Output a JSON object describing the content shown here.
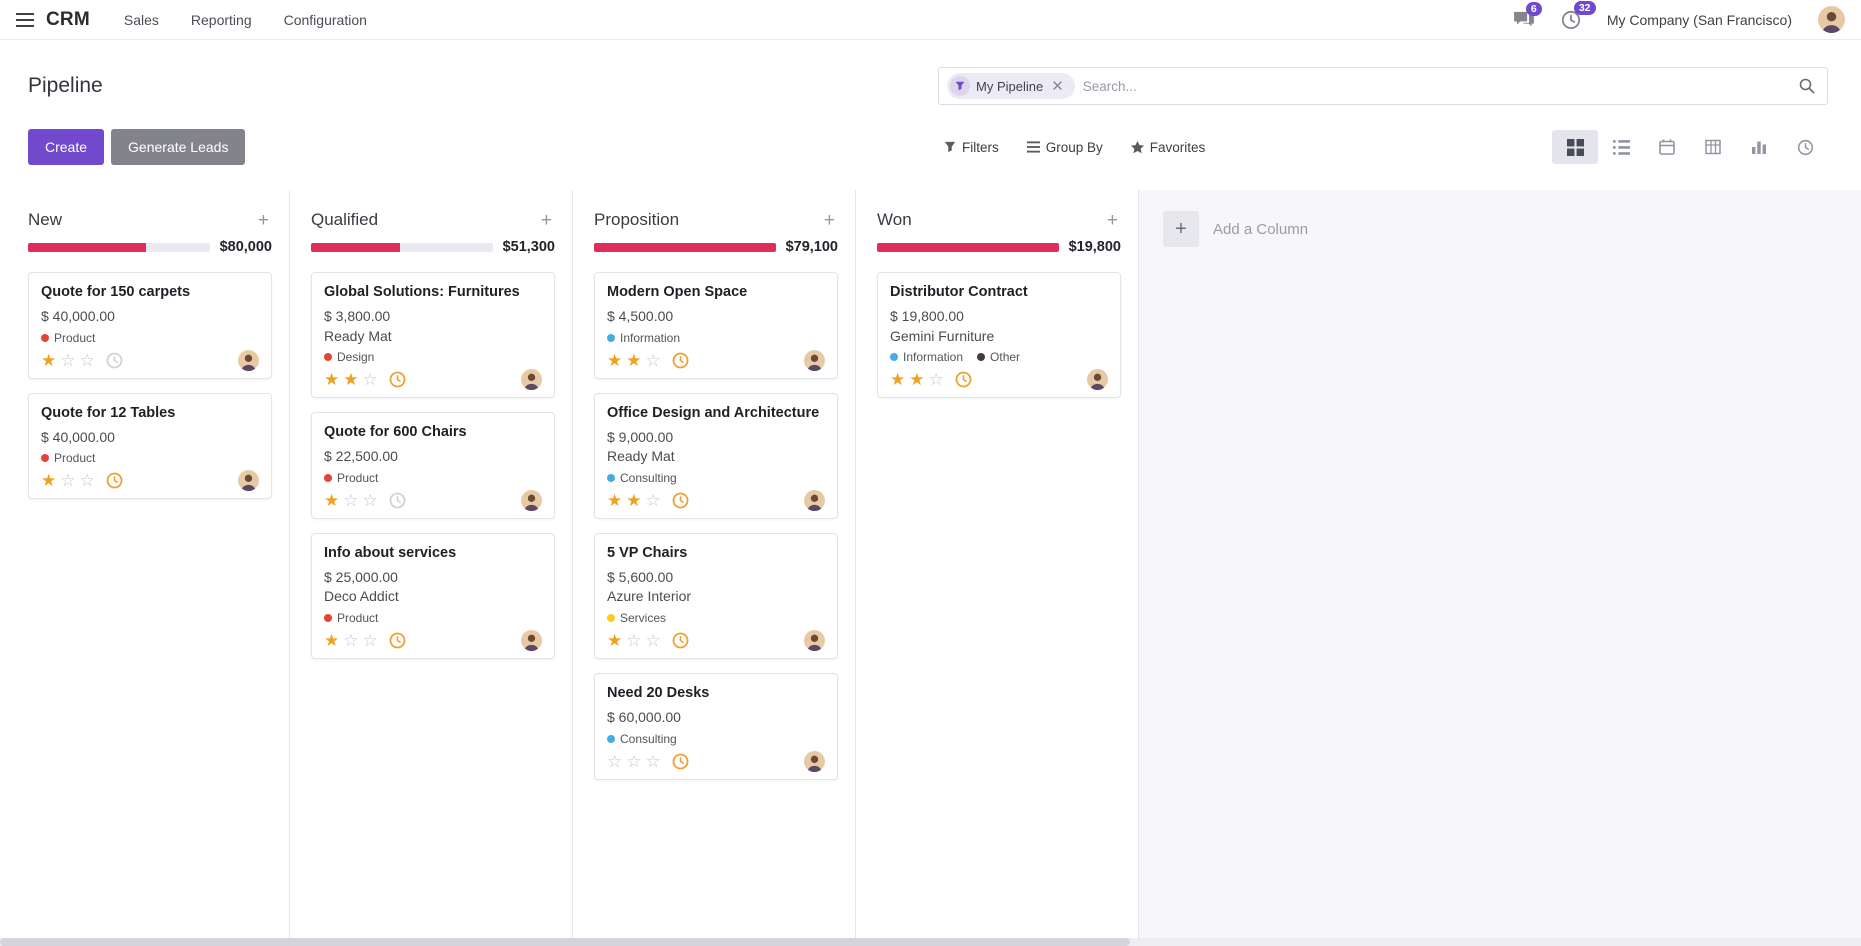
{
  "navbar": {
    "app_name": "CRM",
    "menus": [
      "Sales",
      "Reporting",
      "Configuration"
    ],
    "messages_badge": "6",
    "activities_badge": "32",
    "company": "My Company (San Francisco)"
  },
  "control_panel": {
    "title": "Pipeline",
    "buttons": {
      "create": "Create",
      "generate_leads": "Generate Leads"
    },
    "search": {
      "facet": "My Pipeline",
      "placeholder": "Search..."
    },
    "menus": {
      "filters": "Filters",
      "group_by": "Group By",
      "favorites": "Favorites"
    },
    "view_switcher": [
      "kanban",
      "list",
      "calendar",
      "pivot",
      "graph",
      "activity"
    ],
    "active_view": "kanban"
  },
  "kanban": {
    "add_column_label": "Add a Column",
    "columns": [
      {
        "name": "New",
        "total": "$80,000",
        "progress_pct": 65,
        "cards": [
          {
            "title": "Quote for 150 carpets",
            "amount": "$ 40,000.00",
            "tags": [
              {
                "label": "Product",
                "color": "#e3453a"
              }
            ],
            "stars": 1,
            "activity_color": "#cfd1d8"
          },
          {
            "title": "Quote for 12 Tables",
            "amount": "$ 40,000.00",
            "tags": [
              {
                "label": "Product",
                "color": "#e3453a"
              }
            ],
            "stars": 1,
            "activity_color": "#f0a030"
          }
        ]
      },
      {
        "name": "Qualified",
        "total": "$51,300",
        "progress_pct": 49,
        "cards": [
          {
            "title": "Global Solutions: Furnitures",
            "amount": "$ 3,800.00",
            "partner": "Ready Mat",
            "tags": [
              {
                "label": "Design",
                "color": "#e3453a"
              }
            ],
            "stars": 2,
            "activity_color": "#f0a030"
          },
          {
            "title": "Quote for 600 Chairs",
            "amount": "$ 22,500.00",
            "tags": [
              {
                "label": "Product",
                "color": "#e3453a"
              }
            ],
            "stars": 1,
            "activity_color": "#cfd1d8"
          },
          {
            "title": "Info about services",
            "amount": "$ 25,000.00",
            "partner": "Deco Addict",
            "tags": [
              {
                "label": "Product",
                "color": "#e3453a"
              }
            ],
            "stars": 1,
            "activity_color": "#f0a030"
          }
        ]
      },
      {
        "name": "Proposition",
        "total": "$79,100",
        "progress_pct": 100,
        "cards": [
          {
            "title": "Modern Open Space",
            "amount": "$ 4,500.00",
            "tags": [
              {
                "label": "Information",
                "color": "#45aede"
              }
            ],
            "stars": 2,
            "activity_color": "#f0a030"
          },
          {
            "title": "Office Design and Architecture",
            "amount": "$ 9,000.00",
            "partner": "Ready Mat",
            "tags": [
              {
                "label": "Consulting",
                "color": "#45aede"
              }
            ],
            "stars": 2,
            "activity_color": "#f0a030"
          },
          {
            "title": "5 VP Chairs",
            "amount": "$ 5,600.00",
            "partner": "Azure Interior",
            "tags": [
              {
                "label": "Services",
                "color": "#f7cd1f"
              }
            ],
            "stars": 1,
            "activity_color": "#f0a030"
          },
          {
            "title": "Need 20 Desks",
            "amount": "$ 60,000.00",
            "tags": [
              {
                "label": "Consulting",
                "color": "#45aede"
              }
            ],
            "stars": 0,
            "activity_color": "#f0a030"
          }
        ]
      },
      {
        "name": "Won",
        "total": "$19,800",
        "progress_pct": 100,
        "cards": [
          {
            "title": "Distributor Contract",
            "amount": "$ 19,800.00",
            "partner": "Gemini Furniture",
            "tags": [
              {
                "label": "Information",
                "color": "#45aede"
              },
              {
                "label": "Other",
                "color": "#463a41"
              }
            ],
            "stars": 2,
            "activity_color": "#f0a030"
          }
        ]
      }
    ]
  },
  "icons": [
    "apps-menu",
    "messages",
    "activities",
    "search",
    "filter-funnel",
    "group-by",
    "favorites-star",
    "kanban-view",
    "list-view",
    "calendar-view",
    "pivot-view",
    "graph-view",
    "activity-view",
    "priority-star",
    "activity-clock",
    "add-column-plus",
    "user-avatar"
  ],
  "colors": {
    "primary": "#7149cc",
    "secondary": "#83838c",
    "progress": "#df2e5c",
    "star": "#efa11f"
  }
}
